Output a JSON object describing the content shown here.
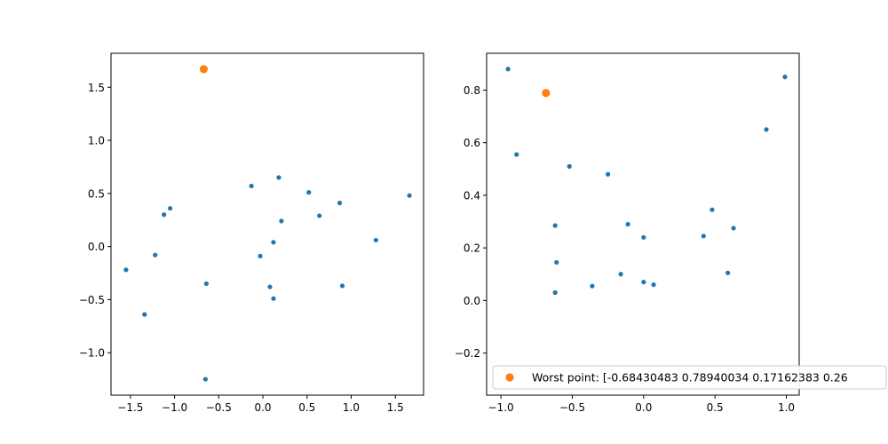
{
  "chart_data": [
    {
      "type": "scatter",
      "title": "",
      "xlabel": "",
      "ylabel": "",
      "xlim": [
        -1.72,
        1.82
      ],
      "ylim": [
        -1.4,
        1.82
      ],
      "xticks": [
        -1.5,
        -1.0,
        -0.5,
        0.0,
        0.5,
        1.0,
        1.5
      ],
      "xtick_labels": [
        "−1.5",
        "−1.0",
        "−0.5",
        "0.0",
        "0.5",
        "1.0",
        "1.5"
      ],
      "yticks": [
        -1.0,
        -0.5,
        0.0,
        0.5,
        1.0,
        1.5
      ],
      "ytick_labels": [
        "−1.0",
        "−0.5",
        "0.0",
        "0.5",
        "1.0",
        "1.5"
      ],
      "grid": false,
      "series": [
        {
          "color": "#1f77b4",
          "marker_size": "small",
          "points": [
            [
              -1.55,
              -0.22
            ],
            [
              -1.34,
              -0.64
            ],
            [
              -1.22,
              -0.08
            ],
            [
              -1.12,
              0.3
            ],
            [
              -1.05,
              0.36
            ],
            [
              -0.64,
              -0.35
            ],
            [
              -0.65,
              -1.25
            ],
            [
              -0.13,
              0.57
            ],
            [
              -0.03,
              -0.09
            ],
            [
              0.08,
              -0.38
            ],
            [
              0.12,
              0.04
            ],
            [
              0.12,
              -0.49
            ],
            [
              0.18,
              0.65
            ],
            [
              0.21,
              0.24
            ],
            [
              0.52,
              0.51
            ],
            [
              0.64,
              0.29
            ],
            [
              0.87,
              0.41
            ],
            [
              0.9,
              -0.37
            ],
            [
              1.28,
              0.06
            ],
            [
              1.66,
              0.48
            ]
          ]
        },
        {
          "color": "#ff7f0e",
          "marker_size": "large",
          "points": [
            [
              -0.67,
              1.67
            ]
          ]
        }
      ]
    },
    {
      "type": "scatter",
      "title": "",
      "xlabel": "",
      "ylabel": "",
      "xlim": [
        -1.1,
        1.09
      ],
      "ylim": [
        -0.36,
        0.94
      ],
      "xticks": [
        -1.0,
        -0.5,
        0.0,
        0.5,
        1.0
      ],
      "xtick_labels": [
        "−1.0",
        "−0.5",
        "0.0",
        "0.5",
        "1.0"
      ],
      "yticks": [
        -0.2,
        0.0,
        0.2,
        0.4,
        0.6,
        0.8
      ],
      "ytick_labels": [
        "−0.2",
        "0.0",
        "0.2",
        "0.4",
        "0.6",
        "0.8"
      ],
      "grid": false,
      "legend": {
        "position": "lower-right",
        "entries": [
          {
            "label": "Worst point: [-0.68430483  0.78940034  0.17162383  0.26",
            "color": "#ff7f0e"
          }
        ]
      },
      "series": [
        {
          "color": "#1f77b4",
          "marker_size": "small",
          "points": [
            [
              -0.95,
              0.88
            ],
            [
              -0.89,
              0.555
            ],
            [
              -0.62,
              0.285
            ],
            [
              -0.61,
              0.145
            ],
            [
              -0.62,
              0.03
            ],
            [
              -0.52,
              0.51
            ],
            [
              -0.36,
              0.055
            ],
            [
              -0.25,
              0.48
            ],
            [
              -0.16,
              0.1
            ],
            [
              -0.11,
              0.29
            ],
            [
              0.0,
              0.24
            ],
            [
              0.0,
              0.07
            ],
            [
              0.07,
              0.06
            ],
            [
              0.42,
              0.245
            ],
            [
              0.48,
              0.345
            ],
            [
              0.59,
              0.105
            ],
            [
              0.63,
              0.275
            ],
            [
              0.86,
              0.65
            ],
            [
              0.99,
              0.85
            ]
          ]
        },
        {
          "color": "#ff7f0e",
          "marker_size": "large",
          "points": [
            [
              -0.684,
              0.789
            ]
          ]
        }
      ]
    }
  ]
}
